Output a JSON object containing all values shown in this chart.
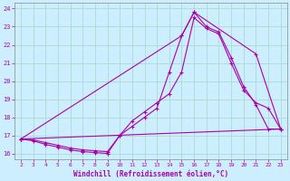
{
  "xlabel": "Windchill (Refroidissement éolien,°C)",
  "bg_color": "#cceeff",
  "grid_color": "#aaddcc",
  "line_color": "#aa00aa",
  "x_ticks": [
    2,
    3,
    4,
    5,
    6,
    7,
    8,
    9,
    10,
    11,
    12,
    13,
    14,
    15,
    16,
    17,
    18,
    19,
    20,
    21,
    22,
    23
  ],
  "y_ticks": [
    16,
    17,
    18,
    19,
    20,
    21,
    22,
    23,
    24
  ],
  "xlim": [
    1.5,
    23.5
  ],
  "ylim": [
    15.7,
    24.3
  ],
  "line1_x": [
    2,
    3,
    4,
    5,
    6,
    7,
    8,
    9,
    10,
    11,
    12,
    13,
    14,
    15,
    16,
    17,
    18,
    19,
    20,
    21,
    22,
    23
  ],
  "line1_y": [
    16.8,
    16.7,
    16.5,
    16.35,
    16.2,
    16.1,
    16.05,
    16.0,
    17.0,
    17.5,
    18.0,
    18.5,
    20.5,
    22.5,
    23.8,
    23.0,
    22.7,
    21.3,
    19.7,
    18.7,
    17.35,
    17.35
  ],
  "line2_x": [
    2,
    3,
    4,
    5,
    6,
    7,
    8,
    9,
    10,
    11,
    12,
    13,
    14,
    15,
    16,
    17,
    18,
    19,
    20,
    21,
    22,
    23
  ],
  "line2_y": [
    16.8,
    16.75,
    16.6,
    16.45,
    16.3,
    16.2,
    16.15,
    16.1,
    17.0,
    17.8,
    18.3,
    18.8,
    19.3,
    20.5,
    23.5,
    22.9,
    22.6,
    21.0,
    19.5,
    18.8,
    18.5,
    17.35
  ],
  "line3_x": [
    2,
    15,
    16,
    21,
    23
  ],
  "line3_y": [
    16.8,
    22.5,
    23.8,
    21.5,
    17.35
  ],
  "line4_x": [
    2,
    23
  ],
  "line4_y": [
    16.8,
    17.35
  ]
}
